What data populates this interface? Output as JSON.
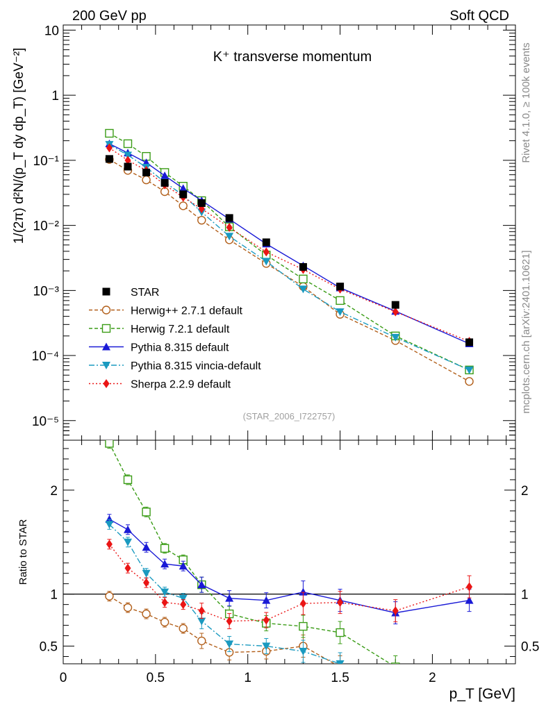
{
  "header": {
    "left": "200 GeV pp",
    "right": "Soft QCD",
    "side_top": "Rivet 4.1.0, ≥ 100k events",
    "side_bottom": "mcplots.cern.ch [arXiv:2401.10621]"
  },
  "chart_data": [
    {
      "type": "line",
      "panel": "main",
      "title": "K⁺ transverse momentum",
      "analysis_tag": "(STAR_2006_I722757)",
      "yscale": "log",
      "ylabel": "1/(2π)  d²N/(p_T dy dp_T) [GeV⁻²]",
      "ylim": [
        5e-06,
        12
      ],
      "xlim": [
        0,
        2.45
      ],
      "y_ticks": [
        "10⁻⁵",
        "10⁻⁴",
        "10⁻³",
        "10⁻²",
        "10⁻¹",
        "1",
        "10"
      ],
      "legend_position": "bottom-left",
      "series": [
        {
          "name": "STAR",
          "color": "#000000",
          "style": "solid",
          "marker": "square-filled",
          "x": [
            0.25,
            0.35,
            0.45,
            0.55,
            0.65,
            0.75,
            0.9,
            1.1,
            1.3,
            1.5,
            1.8,
            2.2
          ],
          "y": [
            0.105,
            0.08,
            0.065,
            0.045,
            0.03,
            0.022,
            0.013,
            0.0055,
            0.0023,
            0.00115,
            0.0006,
            0.00016
          ]
        },
        {
          "name": "Herwig++ 2.7.1 default",
          "color": "#b25f1a",
          "style": "dashed",
          "marker": "circle-open",
          "x": [
            0.25,
            0.35,
            0.45,
            0.55,
            0.65,
            0.75,
            0.9,
            1.1,
            1.3,
            1.5,
            1.8,
            2.2
          ],
          "y": [
            0.103,
            0.07,
            0.05,
            0.033,
            0.02,
            0.012,
            0.006,
            0.0026,
            0.00115,
            0.00043,
            0.00017,
            4e-05
          ]
        },
        {
          "name": "Herwig 7.2.1 default",
          "color": "#3a9c16",
          "style": "dashed",
          "marker": "square-open",
          "x": [
            0.25,
            0.35,
            0.45,
            0.55,
            0.65,
            0.75,
            0.9,
            1.1,
            1.3,
            1.5,
            1.8,
            2.2
          ],
          "y": [
            0.26,
            0.18,
            0.115,
            0.065,
            0.04,
            0.024,
            0.0095,
            0.0035,
            0.0015,
            0.0007,
            0.0002,
            6e-05
          ]
        },
        {
          "name": "Pythia 8.315 default",
          "color": "#1a1ad6",
          "style": "solid",
          "marker": "triangle-up",
          "x": [
            0.25,
            0.35,
            0.45,
            0.55,
            0.65,
            0.75,
            0.9,
            1.1,
            1.3,
            1.5,
            1.8,
            2.2
          ],
          "y": [
            0.18,
            0.13,
            0.092,
            0.058,
            0.037,
            0.024,
            0.0125,
            0.0052,
            0.0024,
            0.0011,
            0.00048,
            0.000152
          ]
        },
        {
          "name": "Pythia 8.315 vincia-default",
          "color": "#1a9ac0",
          "style": "dashdot",
          "marker": "triangle-down",
          "x": [
            0.25,
            0.35,
            0.45,
            0.55,
            0.65,
            0.75,
            0.9,
            1.1,
            1.3,
            1.5,
            1.8,
            2.2
          ],
          "y": [
            0.175,
            0.12,
            0.078,
            0.046,
            0.029,
            0.016,
            0.0068,
            0.0028,
            0.00105,
            0.00047,
            0.00019,
            6e-05
          ]
        },
        {
          "name": "Sherpa 2.2.9 default",
          "color": "#ea1515",
          "style": "dotted",
          "marker": "diamond",
          "x": [
            0.25,
            0.35,
            0.45,
            0.55,
            0.65,
            0.75,
            0.9,
            1.1,
            1.3,
            1.5,
            1.8,
            2.2
          ],
          "y": [
            0.155,
            0.1,
            0.07,
            0.042,
            0.027,
            0.018,
            0.0093,
            0.0039,
            0.0021,
            0.00105,
            0.00047,
            0.000165
          ]
        }
      ]
    },
    {
      "type": "line",
      "panel": "ratio",
      "ylabel": "Ratio to STAR",
      "xlabel": "p_T [GeV]",
      "xlim": [
        0,
        2.45
      ],
      "ylim": [
        0.33,
        2.48
      ],
      "x_ticks": [
        "0",
        "0.5",
        "1",
        "1.5",
        "2"
      ],
      "y_ticks": [
        "0.5",
        "1",
        "2"
      ],
      "reference_line": 1,
      "series": [
        {
          "name": "Herwig++ 2.7.1 default",
          "x": [
            0.25,
            0.35,
            0.45,
            0.55,
            0.65,
            0.75,
            0.9,
            1.1,
            1.3,
            1.5
          ],
          "y": [
            0.98,
            0.87,
            0.81,
            0.73,
            0.67,
            0.55,
            0.44,
            0.45,
            0.5,
            0.3
          ]
        },
        {
          "name": "Herwig 7.2.1 default",
          "x": [
            0.25,
            0.35,
            0.45,
            0.55,
            0.65,
            0.75,
            0.9,
            1.1,
            1.3,
            1.5,
            1.8
          ],
          "y": [
            2.45,
            2.1,
            1.79,
            1.44,
            1.33,
            1.09,
            0.81,
            0.72,
            0.69,
            0.63,
            0.3
          ]
        },
        {
          "name": "Pythia 8.315 default",
          "x": [
            0.25,
            0.35,
            0.45,
            0.55,
            0.65,
            0.75,
            0.9,
            1.1,
            1.3,
            1.5,
            1.8,
            2.2
          ],
          "y": [
            1.72,
            1.62,
            1.45,
            1.29,
            1.27,
            1.09,
            0.96,
            0.94,
            1.02,
            0.94,
            0.82,
            0.94
          ]
        },
        {
          "name": "Pythia 8.315 vincia-default",
          "x": [
            0.25,
            0.35,
            0.45,
            0.55,
            0.65,
            0.75,
            0.9,
            1.1,
            1.3,
            1.5
          ],
          "y": [
            1.67,
            1.5,
            1.2,
            1.02,
            0.96,
            0.74,
            0.52,
            0.5,
            0.45,
            0.33
          ]
        },
        {
          "name": "Sherpa 2.2.9 default",
          "x": [
            0.25,
            0.35,
            0.45,
            0.55,
            0.65,
            0.75,
            0.9,
            1.1,
            1.3,
            1.5,
            1.8,
            2.2
          ],
          "y": [
            1.48,
            1.25,
            1.11,
            0.92,
            0.9,
            0.84,
            0.74,
            0.75,
            0.91,
            0.92,
            0.84,
            1.07
          ]
        }
      ]
    }
  ]
}
